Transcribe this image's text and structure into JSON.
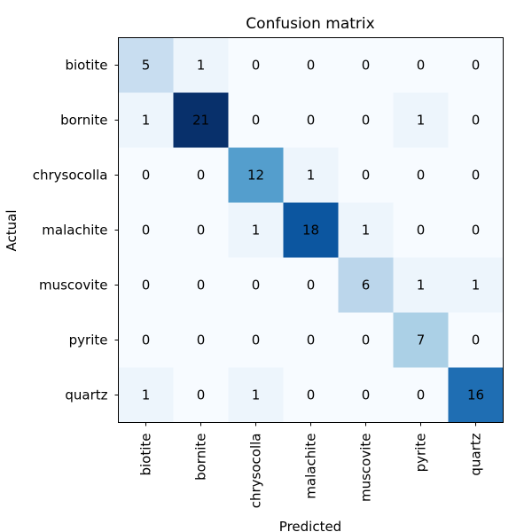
{
  "chart_data": {
    "type": "heatmap",
    "title": "Confusion matrix",
    "xlabel": "Predicted",
    "ylabel": "Actual",
    "x_categories": [
      "biotite",
      "bornite",
      "chrysocolla",
      "malachite",
      "muscovite",
      "pyrite",
      "quartz"
    ],
    "y_categories": [
      "biotite",
      "bornite",
      "chrysocolla",
      "malachite",
      "muscovite",
      "pyrite",
      "quartz"
    ],
    "values": [
      [
        5,
        1,
        0,
        0,
        0,
        0,
        0
      ],
      [
        1,
        21,
        0,
        0,
        0,
        1,
        0
      ],
      [
        0,
        0,
        12,
        1,
        0,
        0,
        0
      ],
      [
        0,
        0,
        1,
        18,
        1,
        0,
        0
      ],
      [
        0,
        0,
        0,
        0,
        6,
        1,
        1
      ],
      [
        0,
        0,
        0,
        0,
        0,
        7,
        0
      ],
      [
        1,
        0,
        1,
        0,
        0,
        0,
        16
      ]
    ],
    "colormap": "Blues",
    "vmin": 0,
    "vmax": 21
  }
}
